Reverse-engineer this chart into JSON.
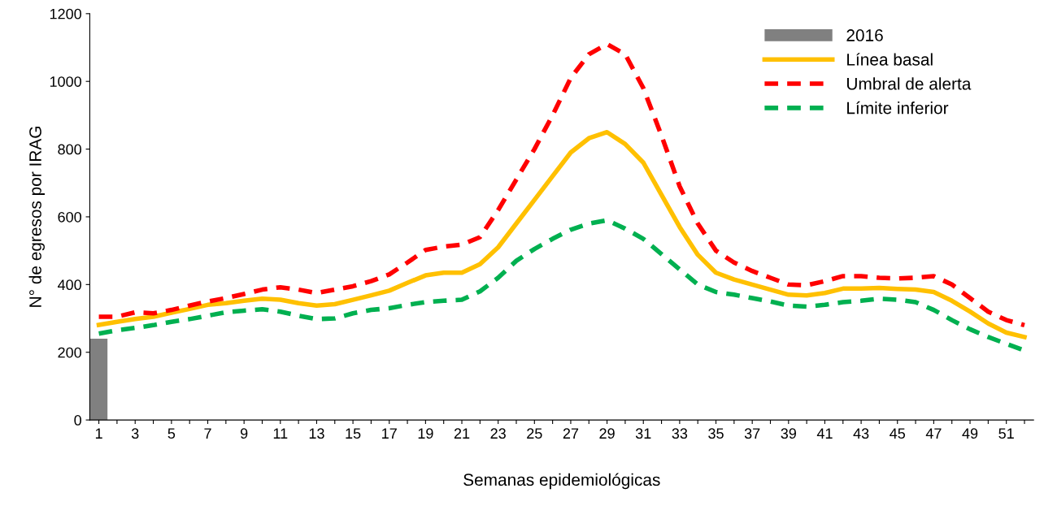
{
  "chart_data": {
    "type": "line",
    "xlabel": "Semanas epidemiológicas",
    "ylabel": "N° de egresos por IRAG",
    "categories": [
      "1",
      null,
      "3",
      null,
      "5",
      null,
      "7",
      null,
      "9",
      null,
      "11",
      null,
      "13",
      null,
      "15",
      null,
      "17",
      null,
      "19",
      null,
      "21",
      null,
      "23",
      null,
      "25",
      null,
      "27",
      null,
      "29",
      null,
      "31",
      null,
      "33",
      null,
      "35",
      null,
      "37",
      null,
      "39",
      null,
      "41",
      null,
      "43",
      null,
      "45",
      null,
      "47",
      null,
      "49",
      null,
      "51",
      null
    ],
    "ylim": [
      0,
      1200
    ],
    "yticks": [
      0,
      200,
      400,
      600,
      800,
      1000,
      1200
    ],
    "grid": false,
    "legend": "top right",
    "series": [
      {
        "name": "2016",
        "type": "bar",
        "color": "#808080",
        "values": [
          240,
          null,
          null,
          null,
          null,
          null,
          null,
          null,
          null,
          null,
          null,
          null,
          null,
          null,
          null,
          null,
          null,
          null,
          null,
          null,
          null,
          null,
          null,
          null,
          null,
          null,
          null,
          null,
          null,
          null,
          null,
          null,
          null,
          null,
          null,
          null,
          null,
          null,
          null,
          null,
          null,
          null,
          null,
          null,
          null,
          null,
          null,
          null,
          null,
          null,
          null,
          null
        ]
      },
      {
        "name": "Línea basal",
        "line_style": "solid",
        "color": "#ffc000",
        "values": [
          281,
          290,
          298,
          305,
          317,
          328,
          340,
          345,
          352,
          358,
          355,
          345,
          338,
          342,
          355,
          368,
          382,
          405,
          427,
          435,
          435,
          460,
          510,
          580,
          650,
          720,
          790,
          832,
          850,
          815,
          760,
          665,
          570,
          488,
          435,
          415,
          400,
          385,
          370,
          368,
          375,
          388,
          388,
          390,
          387,
          385,
          378,
          352,
          320,
          285,
          258,
          245
        ]
      },
      {
        "name": "Umbral de alerta",
        "line_style": "dashed",
        "color": "#ff0000",
        "values": [
          305,
          305,
          318,
          315,
          325,
          338,
          350,
          360,
          372,
          385,
          392,
          385,
          375,
          385,
          395,
          410,
          430,
          465,
          502,
          512,
          518,
          540,
          620,
          710,
          800,
          900,
          1010,
          1080,
          1110,
          1080,
          980,
          840,
          690,
          580,
          500,
          465,
          440,
          420,
          400,
          398,
          410,
          425,
          425,
          420,
          418,
          420,
          425,
          400,
          360,
          320,
          295,
          280
        ]
      },
      {
        "name": "Límite inferior",
        "line_style": "dashed",
        "color": "#00b050",
        "values": [
          255,
          265,
          272,
          280,
          290,
          298,
          308,
          318,
          323,
          327,
          320,
          308,
          298,
          300,
          315,
          325,
          330,
          340,
          348,
          352,
          355,
          380,
          420,
          470,
          505,
          535,
          562,
          580,
          590,
          565,
          535,
          490,
          445,
          400,
          378,
          370,
          360,
          350,
          338,
          335,
          340,
          348,
          352,
          358,
          355,
          348,
          325,
          295,
          268,
          245,
          225,
          205
        ]
      }
    ]
  }
}
